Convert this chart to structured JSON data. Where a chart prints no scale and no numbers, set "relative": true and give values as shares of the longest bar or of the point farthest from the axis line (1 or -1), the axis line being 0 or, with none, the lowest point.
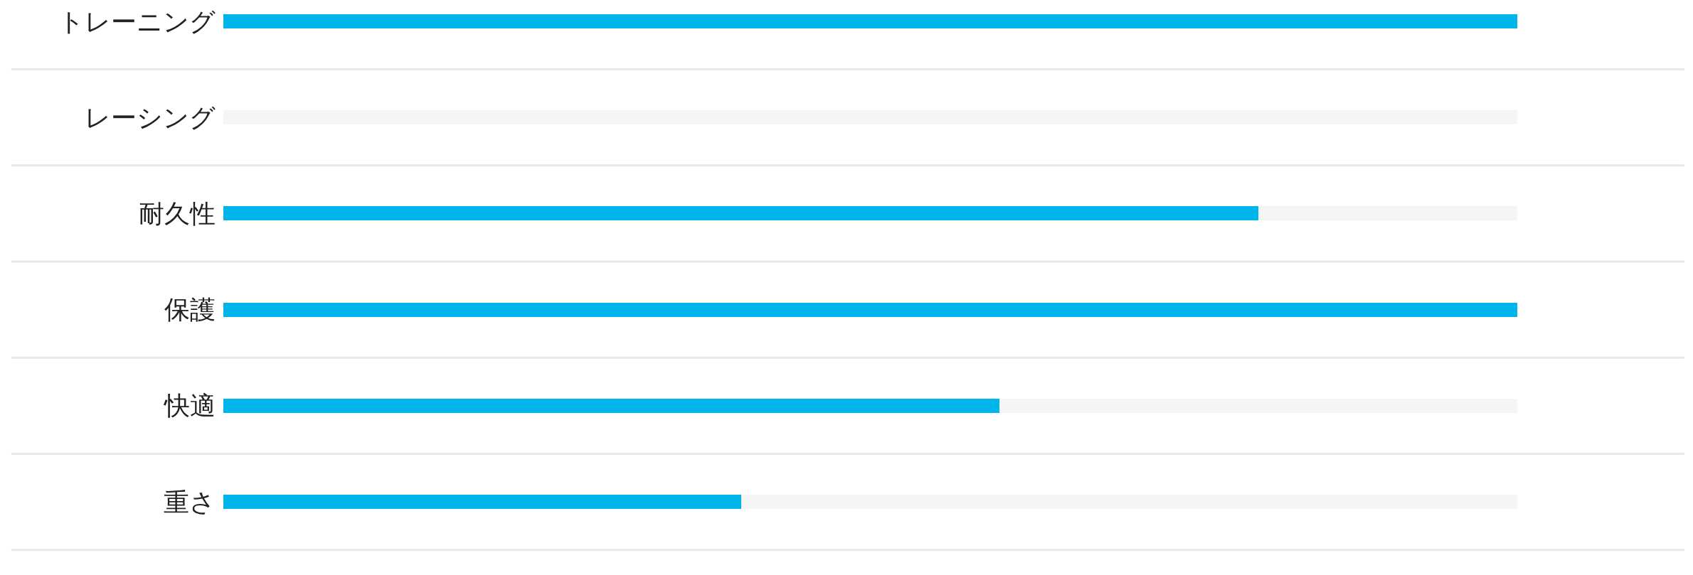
{
  "chart_data": {
    "type": "bar",
    "orientation": "horizontal",
    "relative": true,
    "stacked": true,
    "categories": [
      "トレーニング",
      "レーシング",
      "耐久性",
      "保護",
      "快適",
      "重さ"
    ],
    "series": [
      {
        "color": "#00b5ea",
        "values": [
          1,
          0,
          0.8,
          1,
          0.6,
          0.4
        ]
      },
      {
        "color": "#f5f5f5",
        "values": [
          0,
          1,
          0.2,
          0,
          0.4,
          0.6
        ]
      }
    ],
    "data_labels": false
  }
}
